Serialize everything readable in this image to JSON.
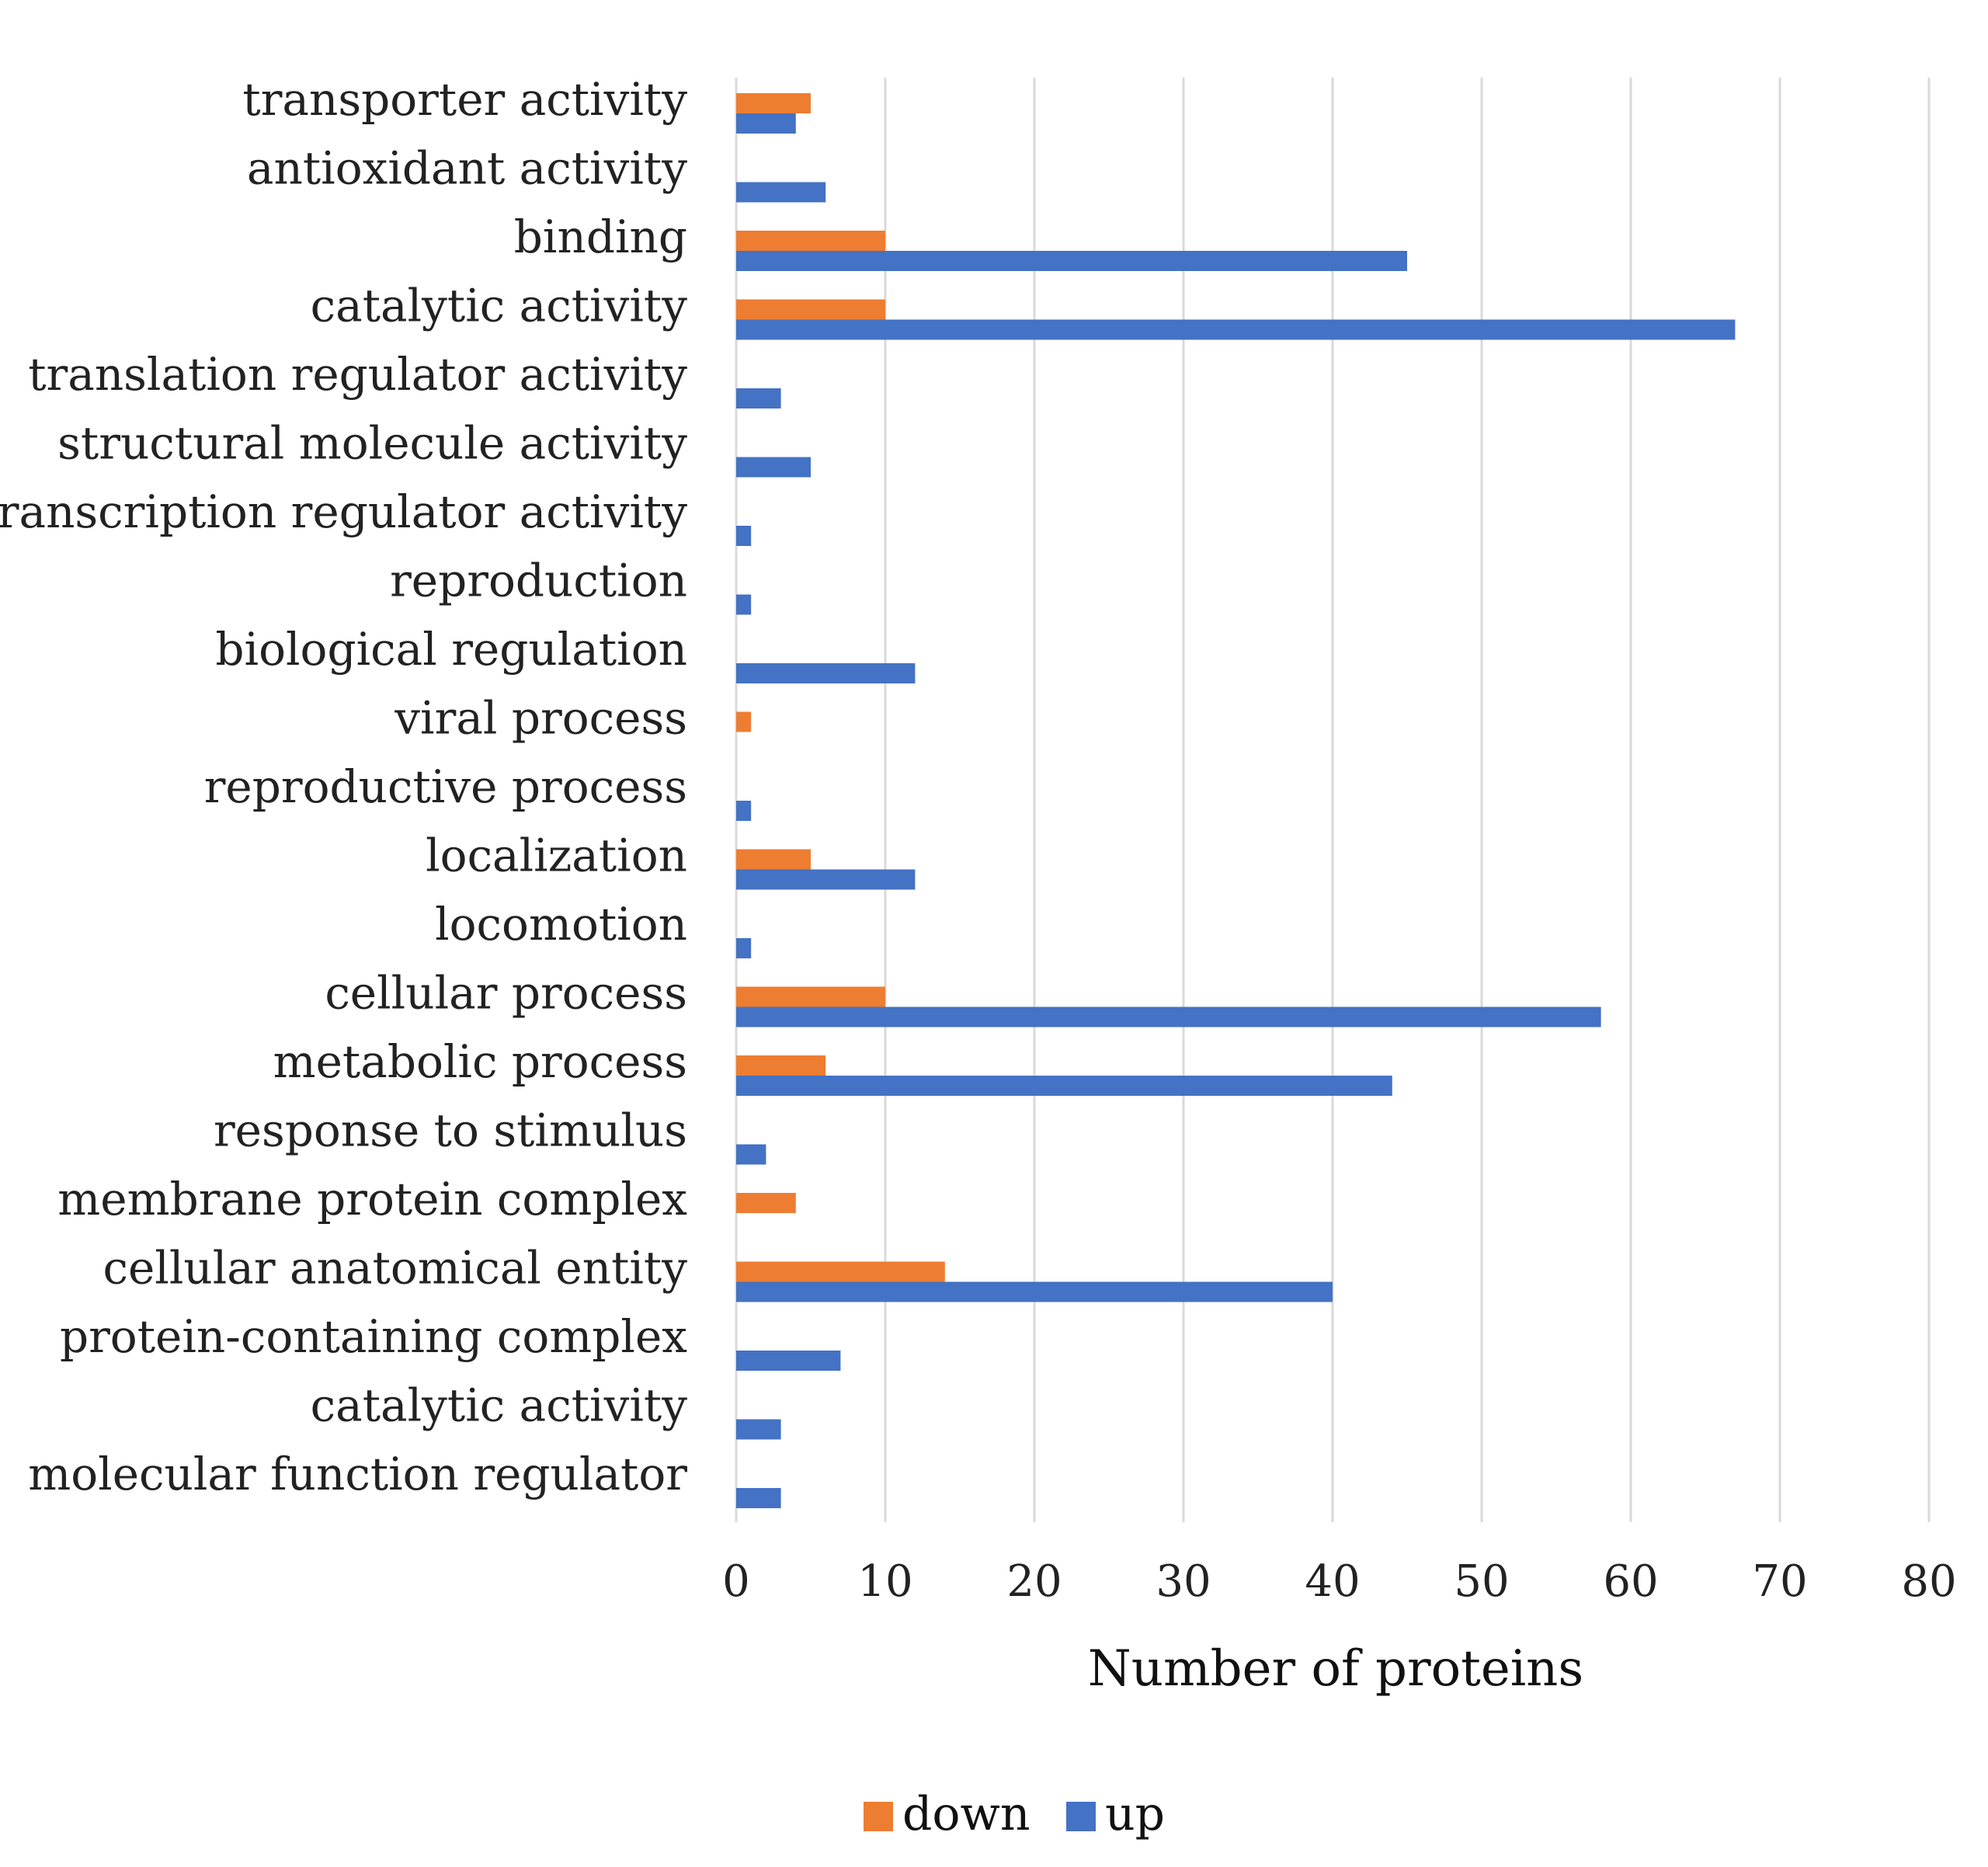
{
  "chart_data": {
    "type": "bar",
    "orientation": "horizontal",
    "categories": [
      "transporter activity",
      "antioxidant activity",
      "binding",
      "catalytic activity",
      "translation regulator activity",
      "structural molecule activity",
      "transcription regulator activity",
      "reproduction",
      "biological regulation",
      "viral process",
      "reproductive process",
      "localization",
      "locomotion",
      "cellular process",
      "metabolic process",
      "response to stimulus",
      "membrane protein complex",
      "cellular anatomical entity",
      "protein-containing complex",
      "catalytic activity",
      "molecular function regulator"
    ],
    "series": [
      {
        "name": "down",
        "color": "#ED7D31",
        "values": [
          5,
          0,
          10,
          10,
          0,
          0,
          0,
          0,
          0,
          1,
          0,
          5,
          0,
          10,
          6,
          0,
          4,
          14,
          0,
          0,
          0
        ]
      },
      {
        "name": "up",
        "color": "#4472C4",
        "values": [
          4,
          6,
          45,
          67,
          3,
          5,
          1,
          1,
          12,
          0,
          1,
          12,
          1,
          58,
          44,
          2,
          0,
          40,
          7,
          3,
          3
        ]
      }
    ],
    "xlabel": "Number of proteins",
    "ylabel": "",
    "xlim": [
      0,
      80
    ],
    "ticks": [
      0,
      10,
      20,
      30,
      40,
      50,
      60,
      70,
      80
    ],
    "grid": true,
    "legend_position": "bottom"
  }
}
